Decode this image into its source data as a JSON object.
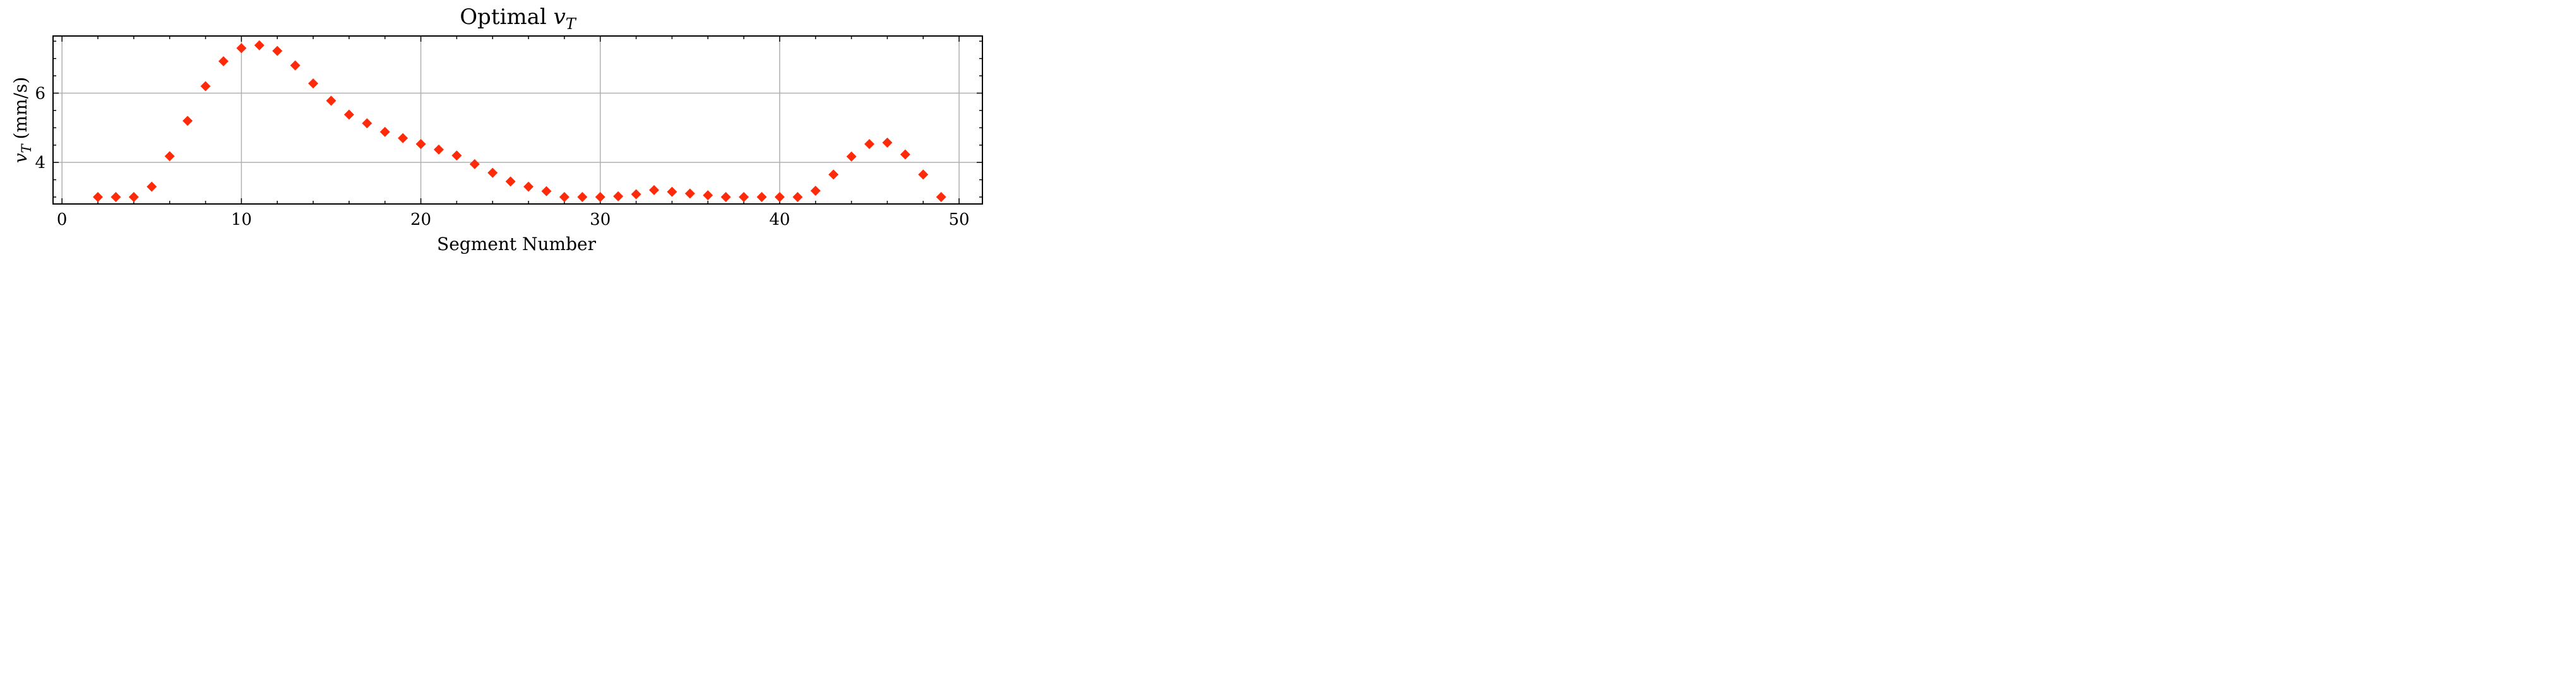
{
  "chart_data": {
    "type": "scatter",
    "title": "Optimal v_T",
    "title_main": "Optimal ",
    "title_symbol": "v",
    "title_subscript": "T",
    "xlabel": "Segment Number",
    "ylabel_symbol": "v",
    "ylabel_subscript": "T",
    "ylabel_unit": "(mm/s)",
    "ylabel": "v_T (mm/s)",
    "xlim": [
      -0.5,
      51.3
    ],
    "ylim": [
      2.8,
      7.65
    ],
    "x_ticks": [
      0,
      10,
      20,
      30,
      40,
      50
    ],
    "y_ticks": [
      4,
      6
    ],
    "grid": true,
    "marker": "diamond",
    "marker_color": "#ff2a0a",
    "grid_color": "#b0b0b0",
    "series": [
      {
        "x": [
          2,
          3,
          4,
          5,
          6,
          7,
          8,
          9,
          10,
          11,
          12,
          13,
          14,
          15,
          16,
          17,
          18,
          19,
          20,
          21,
          22,
          23,
          24,
          25,
          26,
          27,
          28,
          29,
          30,
          31,
          32,
          33,
          34,
          35,
          36,
          37,
          38,
          39,
          40,
          41,
          42,
          43,
          44,
          45,
          46,
          47,
          48,
          49
        ],
        "y": [
          3.0,
          3.0,
          3.0,
          3.3,
          4.18,
          5.2,
          6.2,
          6.92,
          7.3,
          7.38,
          7.22,
          6.8,
          6.28,
          5.78,
          5.38,
          5.13,
          4.88,
          4.7,
          4.53,
          4.37,
          4.2,
          3.95,
          3.7,
          3.45,
          3.3,
          3.17,
          3.0,
          3.0,
          3.0,
          3.02,
          3.08,
          3.2,
          3.15,
          3.1,
          3.05,
          3.0,
          3.0,
          3.0,
          3.0,
          3.0,
          3.18,
          3.65,
          4.17,
          4.53,
          4.57,
          4.23,
          3.65,
          3.0
        ]
      }
    ]
  }
}
